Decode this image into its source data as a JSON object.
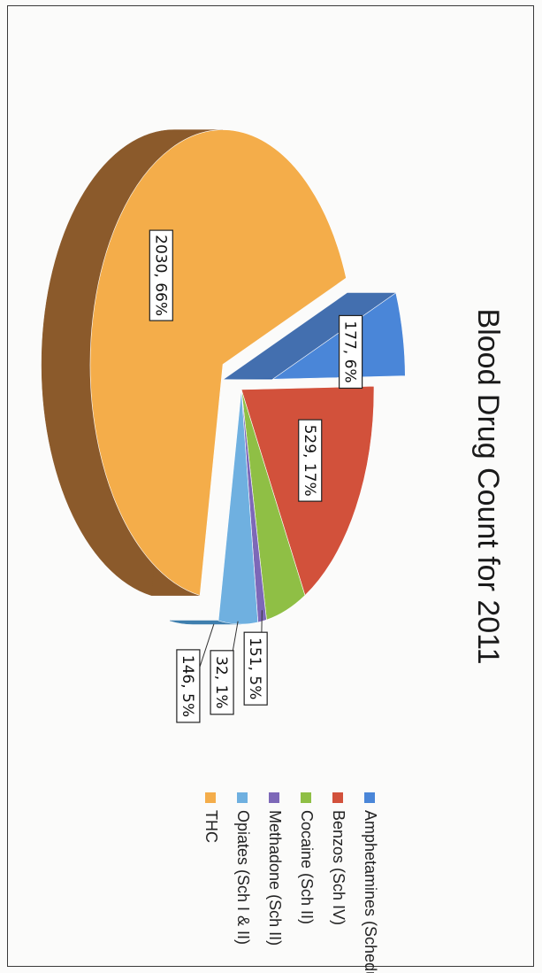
{
  "chart_data": {
    "type": "pie",
    "title": "Blood Drug Count for 2011",
    "slices": [
      {
        "name": "Amphetamines (Schedule II)",
        "value": 177,
        "label": "177, 6%",
        "color": "#4a86d8",
        "side": "#2f5fa6"
      },
      {
        "name": "Benzos (Sch IV)",
        "value": 529,
        "label": "529, 17%",
        "color": "#d2513b",
        "side": "#8f2a1c"
      },
      {
        "name": "Cocaine (Sch II)",
        "value": 151,
        "label": "151, 5%",
        "color": "#8fbf45",
        "side": "#5f8a2a"
      },
      {
        "name": "Methadone (Sch II)",
        "value": 32,
        "label": "32, 1%",
        "color": "#7d68b8",
        "side": "#54458a"
      },
      {
        "name": "Opiates (Sch I & II)",
        "value": 146,
        "label": "146, 5%",
        "color": "#6fb0e0",
        "side": "#3f7fae"
      },
      {
        "name": "THC",
        "value": 2030,
        "label": "2030, 66%",
        "color": "#f4ad4a",
        "side": "#8b5a2b"
      }
    ],
    "legend_position": "right"
  }
}
